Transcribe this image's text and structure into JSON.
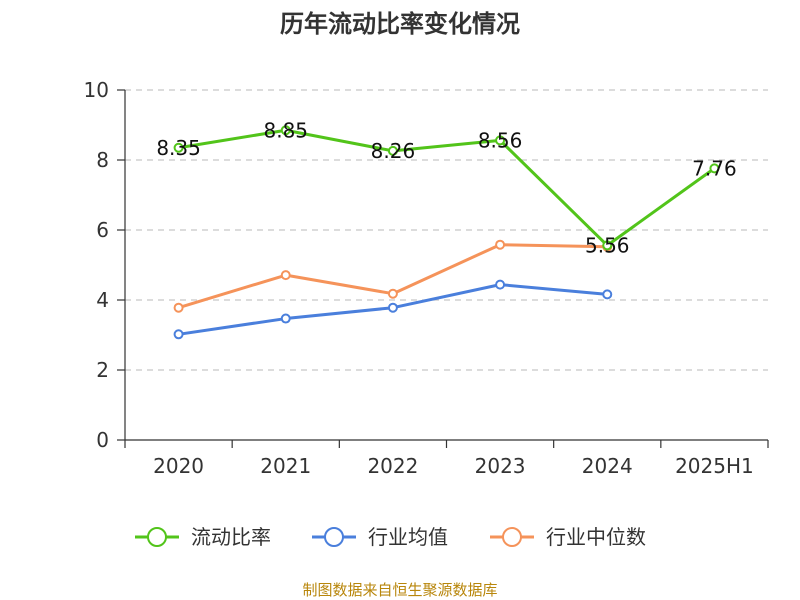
{
  "chart_data": {
    "type": "line",
    "title": "历年流动比率变化情况",
    "categories": [
      "2020",
      "2021",
      "2022",
      "2023",
      "2024",
      "2025H1"
    ],
    "ylim": [
      0,
      10
    ],
    "yticks": [
      0,
      2,
      4,
      6,
      8,
      10
    ],
    "grid": true,
    "legend_position": "bottom",
    "series": [
      {
        "name": "流动比率",
        "color": "#52c41a",
        "values": [
          8.35,
          8.85,
          8.26,
          8.56,
          5.56,
          7.76
        ],
        "labels": [
          "8.35",
          "8.85",
          "8.26",
          "8.56",
          "5.56",
          "7.76"
        ]
      },
      {
        "name": "行业均值",
        "color": "#4a7fdc",
        "values": [
          3.02,
          3.47,
          3.78,
          4.44,
          4.16,
          null
        ]
      },
      {
        "name": "行业中位数",
        "color": "#f5935a",
        "values": [
          3.78,
          4.71,
          4.18,
          5.58,
          5.52,
          null
        ]
      }
    ],
    "source": "制图数据来自恒生聚源数据库"
  }
}
